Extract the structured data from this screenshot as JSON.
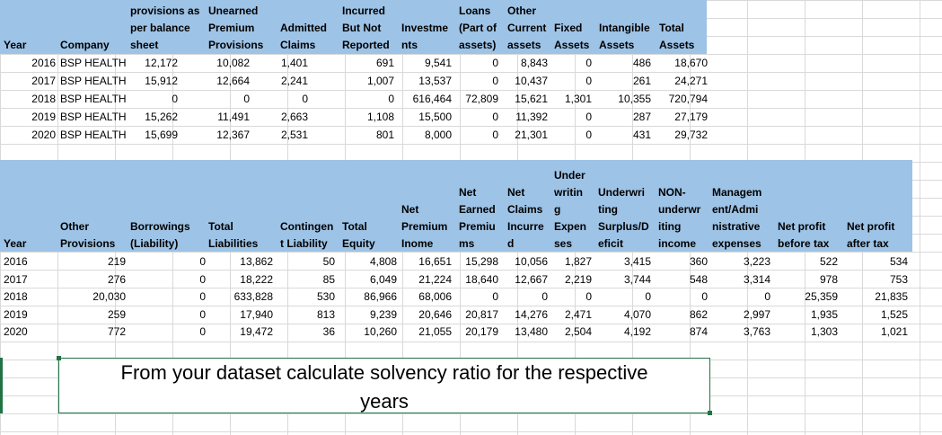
{
  "table1": {
    "headers": {
      "year": "Year",
      "company": "Company",
      "provisions": [
        "provisions as",
        "per balance",
        "sheet"
      ],
      "unearned": [
        "Unearned",
        "Premium",
        "Provisions"
      ],
      "admitted": [
        "Admitted",
        "Claims"
      ],
      "incurred": [
        "Incurred",
        "But Not",
        "Reported"
      ],
      "investments": [
        "Investme",
        "nts"
      ],
      "loans": [
        "Loans",
        "(Part of",
        "assets)"
      ],
      "other_current": [
        "Other",
        "Current",
        "assets"
      ],
      "fixed": [
        "Fixed",
        "Assets"
      ],
      "intangible": [
        "Intangible",
        "Assets"
      ],
      "total_assets": [
        "Total",
        "Assets"
      ]
    },
    "rows": [
      [
        "2016",
        "BSP HEALTH",
        "12,172",
        "10,082",
        "1,401",
        "691",
        "9,541",
        "0",
        "8,843",
        "0",
        "486",
        "18,670"
      ],
      [
        "2017",
        "BSP HEALTH",
        "15,912",
        "12,664",
        "2,241",
        "1,007",
        "13,537",
        "0",
        "10,437",
        "0",
        "261",
        "24,271"
      ],
      [
        "2018",
        "BSP HEALTH",
        "0",
        "0",
        "0",
        "0",
        "616,464",
        "72,809",
        "15,621",
        "1,301",
        "10,355",
        "720,794"
      ],
      [
        "2019",
        "BSP HEALTH",
        "15,262",
        "11,491",
        "2,663",
        "1,108",
        "15,500",
        "0",
        "11,392",
        "0",
        "287",
        "27,179"
      ],
      [
        "2020",
        "BSP HEALTH",
        "15,699",
        "12,367",
        "2,531",
        "801",
        "8,000",
        "0",
        "21,301",
        "0",
        "431",
        "29,732"
      ]
    ]
  },
  "table2": {
    "headers": {
      "year": "Year",
      "other_prov": [
        "Other",
        "Provisions"
      ],
      "borrowings": [
        "Borrowings",
        "(Liability)"
      ],
      "total_liab": [
        "Total",
        "Liabilities"
      ],
      "contingent": [
        "Contingen",
        "t Liability"
      ],
      "total_equity": [
        "Total",
        "Equity"
      ],
      "net_premium": [
        "Net",
        "Premium",
        "Inome"
      ],
      "net_earned": [
        "Net",
        "Earned",
        "Premiu",
        "ms"
      ],
      "net_claims": [
        "Net",
        "Claims",
        "Incurre",
        "d"
      ],
      "underwriting_exp": [
        "Under",
        "writin",
        "g",
        "Expen",
        "ses"
      ],
      "underwriting_surplus": [
        "Underwri",
        "ting",
        "Surplus/D",
        "eficit"
      ],
      "non_underwriting": [
        "NON-",
        "underwr",
        "iting",
        "income"
      ],
      "management": [
        "Managem",
        "ent/Admi",
        "nistrative",
        "expenses"
      ],
      "net_before": [
        "Net profit",
        "before tax"
      ],
      "net_after": [
        "Net profit",
        "after tax"
      ]
    },
    "rows": [
      [
        "2016",
        "219",
        "0",
        "13,862",
        "50",
        "4,808",
        "16,651",
        "15,298",
        "10,056",
        "1,827",
        "3,415",
        "360",
        "3,223",
        "522",
        "534"
      ],
      [
        "2017",
        "276",
        "0",
        "18,222",
        "85",
        "6,049",
        "21,224",
        "18,640",
        "12,667",
        "2,219",
        "3,744",
        "548",
        "3,314",
        "978",
        "753"
      ],
      [
        "2018",
        "20,030",
        "0",
        "633,828",
        "530",
        "86,966",
        "68,006",
        "0",
        "0",
        "0",
        "0",
        "0",
        "0",
        "25,359",
        "21,835"
      ],
      [
        "2019",
        "259",
        "0",
        "17,940",
        "813",
        "9,239",
        "20,646",
        "20,817",
        "14,276",
        "2,471",
        "4,070",
        "862",
        "2,997",
        "1,935",
        "1,525"
      ],
      [
        "2020",
        "772",
        "0",
        "19,472",
        "36",
        "10,260",
        "21,055",
        "20,179",
        "13,480",
        "2,504",
        "4,192",
        "874",
        "3,763",
        "1,303",
        "1,021"
      ]
    ]
  },
  "textbox": {
    "line1": "From your dataset calculate solvency ratio for the respective",
    "line2": "years"
  }
}
